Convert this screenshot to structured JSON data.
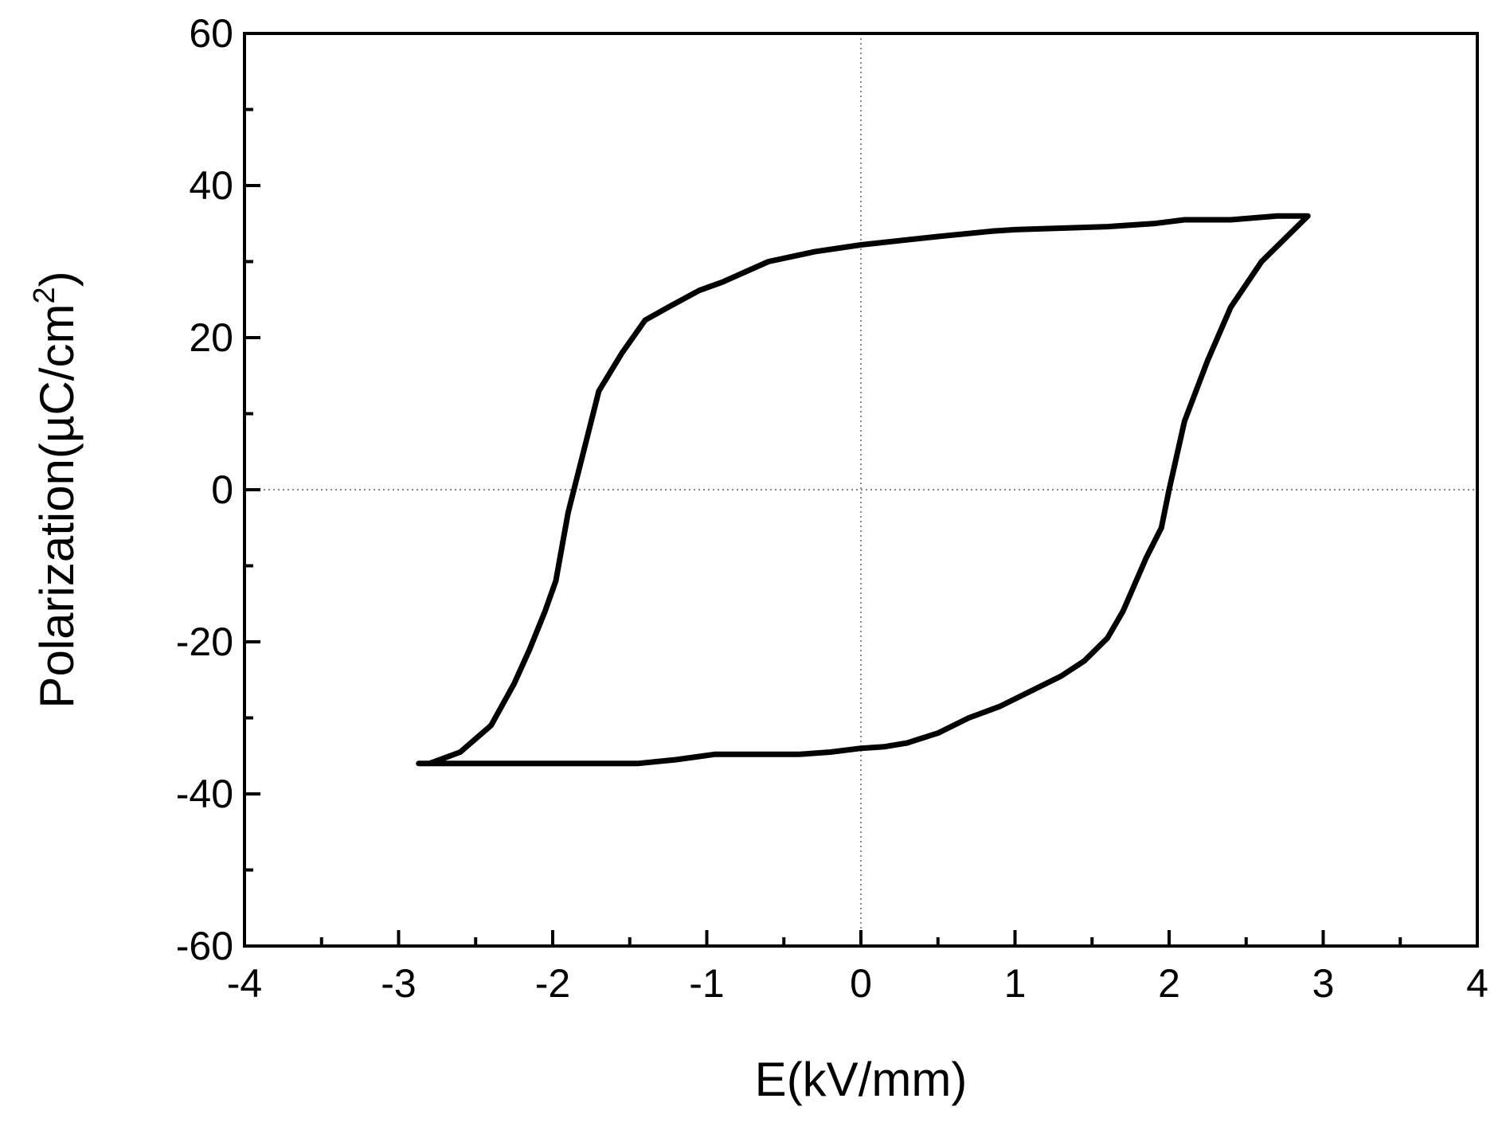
{
  "chart_data": {
    "type": "line",
    "title": "",
    "xlabel": "E(kV/mm)",
    "ylabel": "Polarization(µC/cm²)",
    "ylabel_parts": {
      "main": "Polarization(µC/cm",
      "superscript": "2",
      "close": ")"
    },
    "xlim": [
      -4,
      4
    ],
    "ylim": [
      -60,
      60
    ],
    "xticks": [
      -4,
      -3,
      -2,
      -1,
      0,
      1,
      2,
      3,
      4
    ],
    "xtick_labels": [
      "-4",
      "-3",
      "-2",
      "-1",
      "0",
      "1",
      "2",
      "3",
      "4"
    ],
    "yticks": [
      -60,
      -40,
      -20,
      0,
      20,
      40,
      60
    ],
    "ytick_labels": [
      "-60",
      "-40",
      "-20",
      "0",
      "20",
      "40",
      "60"
    ],
    "x_minor_step": 0.5,
    "y_minor_step": 10,
    "zero_reference_lines": true,
    "grid": false,
    "legend": "none",
    "series": [
      {
        "color": "#000000",
        "closed": true,
        "x": [
          2.9,
          2.7,
          2.4,
          2.1,
          1.9,
          1.6,
          1.3,
          1.0,
          0.85,
          0.5,
          0.0,
          -0.3,
          -0.6,
          -0.9,
          -1.05,
          -1.25,
          -1.4,
          -1.55,
          -1.7,
          -1.8,
          -1.9,
          -1.98,
          -2.05,
          -2.15,
          -2.25,
          -2.4,
          -2.6,
          -2.8,
          -2.87,
          -2.7,
          -2.3,
          -1.9,
          -1.45,
          -1.2,
          -0.95,
          -0.6,
          -0.4,
          -0.2,
          0.0,
          0.15,
          0.3,
          0.5,
          0.7,
          0.9,
          1.1,
          1.3,
          1.45,
          1.6,
          1.7,
          1.85,
          1.95,
          2.0,
          2.1,
          2.25,
          2.4,
          2.6,
          2.9
        ],
        "y": [
          36.0,
          36.0,
          35.5,
          35.5,
          35.0,
          34.6,
          34.4,
          34.2,
          34.0,
          33.3,
          32.2,
          31.3,
          30.0,
          27.3,
          26.2,
          24.0,
          22.3,
          18.0,
          13.0,
          5.0,
          -3.0,
          -12.0,
          -16.0,
          -21.0,
          -25.5,
          -31.0,
          -34.5,
          -36.0,
          -36.0,
          -36.0,
          -36.0,
          -36.0,
          -36.0,
          -35.5,
          -34.8,
          -34.8,
          -34.8,
          -34.5,
          -34.0,
          -33.8,
          -33.3,
          -32.0,
          -30.0,
          -28.5,
          -26.5,
          -24.5,
          -22.5,
          -19.5,
          -16.0,
          -9.0,
          -5.0,
          0.0,
          9.0,
          17.0,
          24.0,
          30.0,
          36.0
        ]
      }
    ]
  }
}
